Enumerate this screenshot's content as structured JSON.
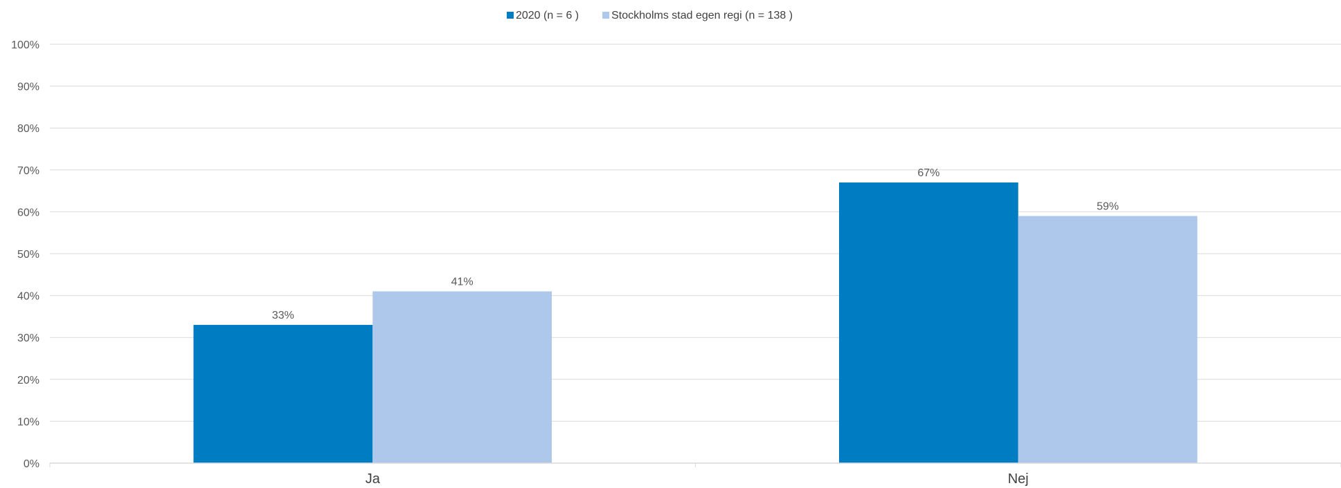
{
  "chart_data": {
    "type": "bar",
    "categories": [
      "Ja",
      "Nej"
    ],
    "series": [
      {
        "name": "2020 (n = 6 )",
        "values": [
          33,
          67
        ],
        "labels": [
          "33%",
          "67%"
        ],
        "color": "#007CC3"
      },
      {
        "name": "Stockholms stad egen regi (n = 138 )",
        "values": [
          41,
          59
        ],
        "labels": [
          "41%",
          "59%"
        ],
        "color": "#ADC8EA"
      }
    ],
    "y_ticks": [
      "0%",
      "10%",
      "20%",
      "30%",
      "40%",
      "50%",
      "60%",
      "70%",
      "80%",
      "90%",
      "100%"
    ],
    "ylim": [
      0,
      100
    ],
    "grid": true,
    "legend_position": "top-center",
    "gridline_color": "#D9D9D9"
  }
}
